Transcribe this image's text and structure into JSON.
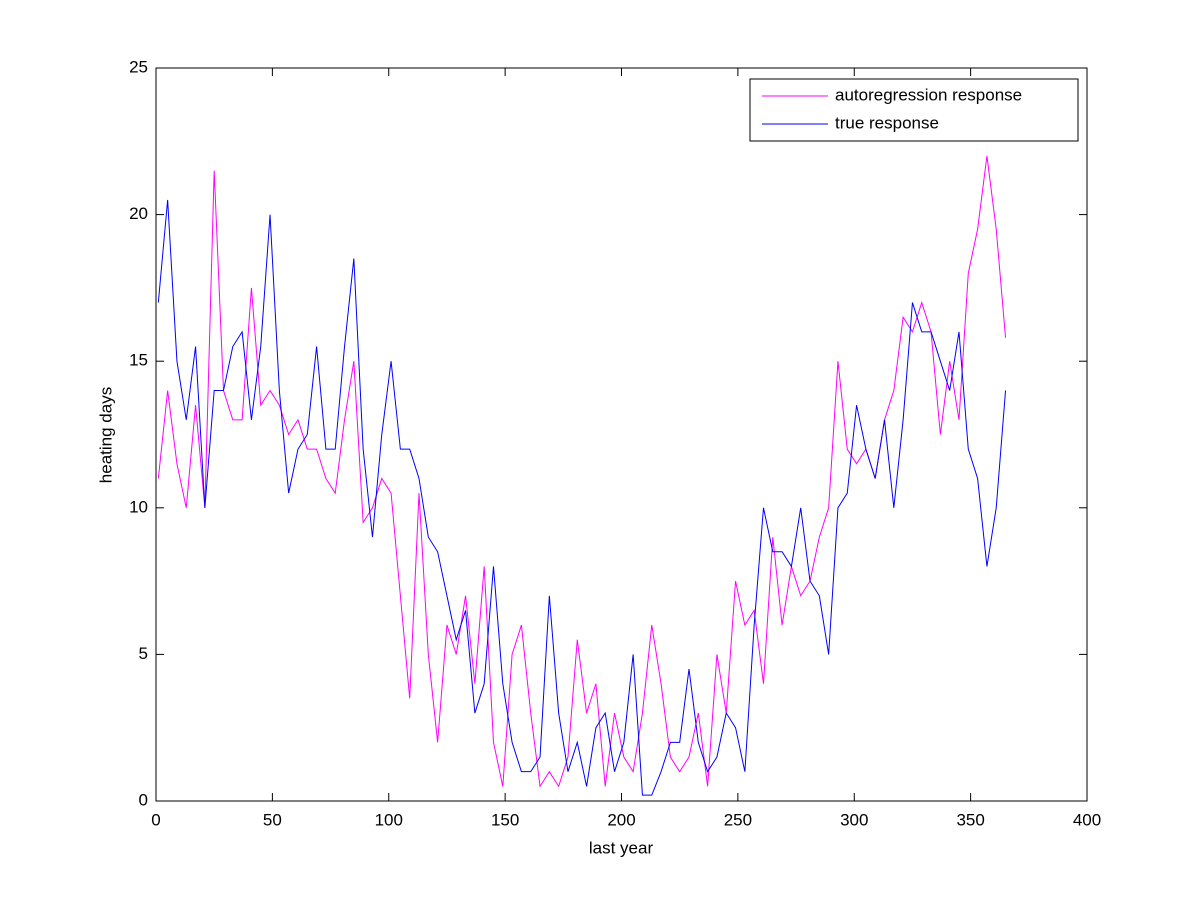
{
  "chart_data": {
    "type": "line",
    "x_label": "last year",
    "y_label": "heating days",
    "x": [
      1,
      5,
      9,
      13,
      17,
      21,
      25,
      29,
      33,
      37,
      41,
      45,
      49,
      53,
      57,
      61,
      65,
      69,
      73,
      77,
      81,
      85,
      89,
      93,
      97,
      101,
      105,
      109,
      113,
      117,
      121,
      125,
      129,
      133,
      137,
      141,
      145,
      149,
      153,
      157,
      161,
      165,
      169,
      173,
      177,
      181,
      185,
      189,
      193,
      197,
      201,
      205,
      209,
      213,
      217,
      221,
      225,
      229,
      233,
      237,
      241,
      245,
      249,
      253,
      257,
      261,
      265,
      269,
      273,
      277,
      281,
      285,
      289,
      293,
      297,
      301,
      305,
      309,
      313,
      317,
      321,
      325,
      329,
      333,
      337,
      341,
      345,
      349,
      353,
      357,
      361,
      365
    ],
    "series": [
      {
        "name": "autoregression response",
        "color": "#ff00ff",
        "values": [
          11,
          14,
          11.5,
          10,
          13.5,
          10,
          21.5,
          14,
          13,
          13,
          17.5,
          13.5,
          14,
          13.5,
          12.5,
          13,
          12,
          12,
          11,
          10.5,
          13,
          15,
          9.5,
          10,
          11,
          10.5,
          7,
          3.5,
          10.5,
          5,
          2,
          6,
          5,
          7,
          4,
          8,
          2,
          0.5,
          5,
          6,
          3,
          0.5,
          1,
          0.5,
          1.5,
          5.5,
          3,
          4,
          0.5,
          3,
          1.5,
          1,
          3,
          6,
          4,
          1.5,
          1,
          1.5,
          3,
          0.5,
          5,
          3,
          7.5,
          6,
          6.5,
          4,
          9,
          6,
          8,
          7,
          7.5,
          9,
          10,
          15,
          12,
          11.5,
          12,
          11,
          13,
          14,
          16.5,
          16,
          17,
          16,
          12.5,
          15,
          13,
          18,
          19.5,
          22,
          19.5,
          15.8
        ]
      },
      {
        "name": "true response",
        "color": "#0000ff",
        "values": [
          17,
          20.5,
          15,
          13,
          15.5,
          10,
          14,
          14,
          15.5,
          16,
          13,
          15.5,
          20,
          14,
          10.5,
          12,
          12.5,
          15.5,
          12,
          12,
          15.5,
          18.5,
          12,
          9,
          12.5,
          15,
          12,
          12,
          11,
          9,
          8.5,
          7,
          5.5,
          6.5,
          3,
          4,
          8,
          4,
          2,
          1,
          1,
          1.5,
          7,
          3,
          1,
          2,
          0.5,
          2.5,
          3,
          1,
          2,
          5,
          0.2,
          0.2,
          1,
          2,
          2,
          4.5,
          2,
          1,
          1.5,
          3,
          2.5,
          1,
          6,
          10,
          8.5,
          8.5,
          8,
          10,
          7.5,
          7,
          5,
          10,
          10.5,
          13.5,
          12,
          11,
          13,
          10,
          13,
          17,
          16,
          16,
          15,
          14,
          16,
          12,
          11,
          8,
          10,
          14
        ]
      }
    ],
    "xlim": [
      0,
      400
    ],
    "xticks": [
      0,
      50,
      100,
      150,
      200,
      250,
      300,
      350,
      400
    ],
    "ylim": [
      0,
      25
    ],
    "yticks": [
      0,
      5,
      10,
      15,
      20,
      25
    ],
    "legend": "upper right"
  }
}
